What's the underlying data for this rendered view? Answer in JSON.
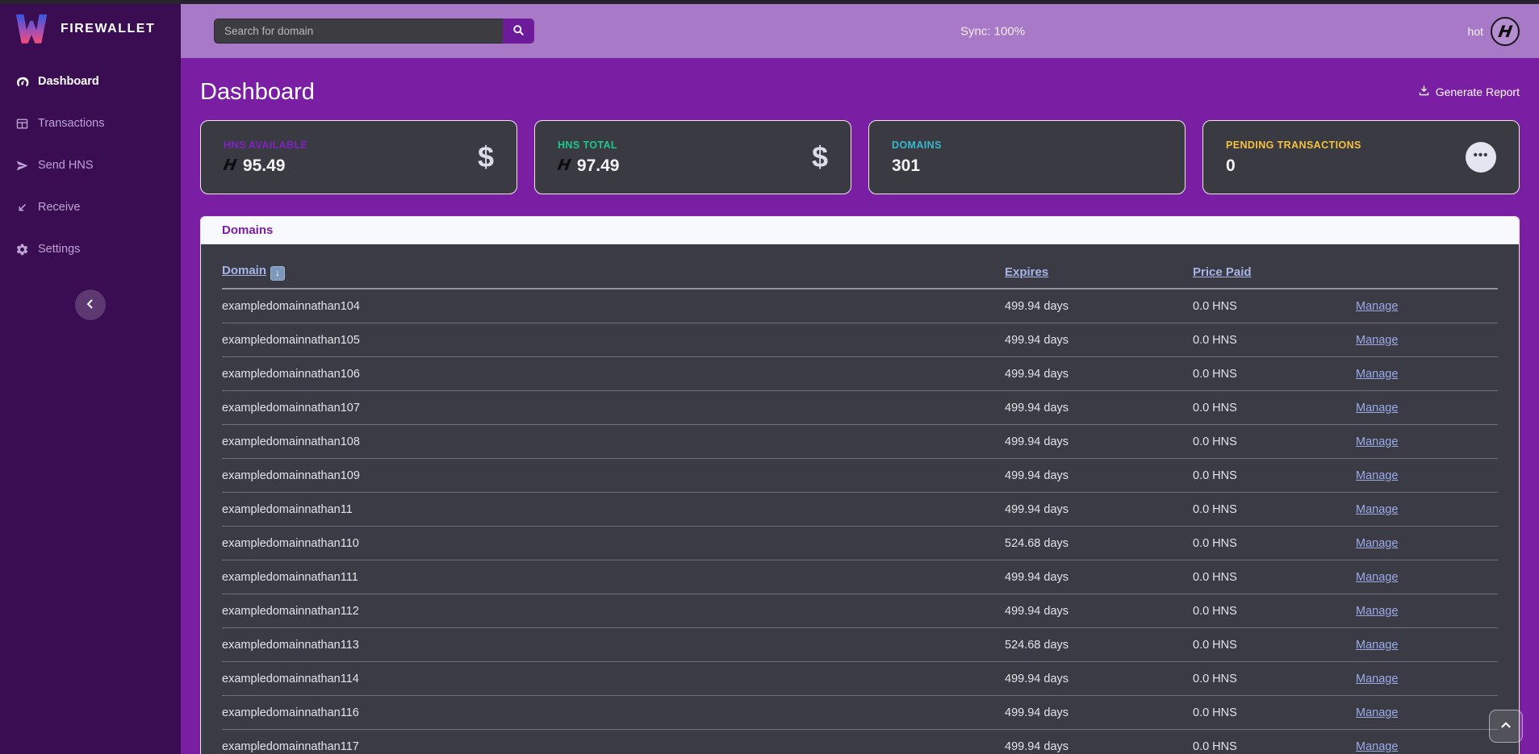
{
  "brand": {
    "name": "FIREWALLET",
    "logo_icon": "firewallet-w-logo"
  },
  "topbar": {
    "search": {
      "placeholder": "Search for domain",
      "button_icon": "search-icon"
    },
    "sync_status": "Sync: 100%",
    "wallet": {
      "label": "hot",
      "logo_icon": "handshake-logo"
    }
  },
  "sidebar": {
    "items": [
      {
        "label": "Dashboard",
        "icon": "tachometer-icon",
        "active": true
      },
      {
        "label": "Transactions",
        "icon": "table-icon",
        "active": false
      },
      {
        "label": "Send HNS",
        "icon": "send-icon",
        "active": false
      },
      {
        "label": "Receive",
        "icon": "receive-arrow-icon",
        "active": false
      },
      {
        "label": "Settings",
        "icon": "gear-icon",
        "active": false
      }
    ],
    "collapse_icon": "chevron-left-icon"
  },
  "page": {
    "title": "Dashboard",
    "actions": {
      "generate_report": {
        "label": "Generate Report",
        "icon": "download-icon"
      }
    }
  },
  "stat_cards": [
    {
      "label": "HNS AVAILABLE",
      "accent": "#7e22c0",
      "value": "95.49",
      "value_prefix_icon": "handshake-logo",
      "right_icon": "dollar-icon"
    },
    {
      "label": "HNS TOTAL",
      "accent": "#1cc88a",
      "value": "97.49",
      "value_prefix_icon": "handshake-logo",
      "right_icon": "dollar-icon"
    },
    {
      "label": "DOMAINS",
      "accent": "#36b9cc",
      "value": "301",
      "value_prefix_icon": null,
      "right_icon": null
    },
    {
      "label": "PENDING TRANSACTIONS",
      "accent": "#f6c23e",
      "value": "0",
      "value_prefix_icon": null,
      "right_icon": "ellipsis-menu-icon"
    }
  ],
  "domains_panel": {
    "title": "Domains",
    "table": {
      "columns": [
        {
          "label": "Domain",
          "sort_icon": "down-arrow-emoji"
        },
        {
          "label": "Expires"
        },
        {
          "label": "Price Paid"
        }
      ],
      "manage_label": "Manage",
      "rows": [
        {
          "domain": "exampledomainnathan104",
          "expires": "499.94 days",
          "price_paid": "0.0 HNS"
        },
        {
          "domain": "exampledomainnathan105",
          "expires": "499.94 days",
          "price_paid": "0.0 HNS"
        },
        {
          "domain": "exampledomainnathan106",
          "expires": "499.94 days",
          "price_paid": "0.0 HNS"
        },
        {
          "domain": "exampledomainnathan107",
          "expires": "499.94 days",
          "price_paid": "0.0 HNS"
        },
        {
          "domain": "exampledomainnathan108",
          "expires": "499.94 days",
          "price_paid": "0.0 HNS"
        },
        {
          "domain": "exampledomainnathan109",
          "expires": "499.94 days",
          "price_paid": "0.0 HNS"
        },
        {
          "domain": "exampledomainnathan11",
          "expires": "499.94 days",
          "price_paid": "0.0 HNS"
        },
        {
          "domain": "exampledomainnathan110",
          "expires": "524.68 days",
          "price_paid": "0.0 HNS"
        },
        {
          "domain": "exampledomainnathan111",
          "expires": "499.94 days",
          "price_paid": "0.0 HNS"
        },
        {
          "domain": "exampledomainnathan112",
          "expires": "499.94 days",
          "price_paid": "0.0 HNS"
        },
        {
          "domain": "exampledomainnathan113",
          "expires": "524.68 days",
          "price_paid": "0.0 HNS"
        },
        {
          "domain": "exampledomainnathan114",
          "expires": "499.94 days",
          "price_paid": "0.0 HNS"
        },
        {
          "domain": "exampledomainnathan116",
          "expires": "499.94 days",
          "price_paid": "0.0 HNS"
        },
        {
          "domain": "exampledomainnathan117",
          "expires": "499.94 days",
          "price_paid": "0.0 HNS"
        }
      ]
    }
  },
  "misc": {
    "scroll_top_icon": "chevron-up-icon"
  },
  "colors": {
    "top_strip": "#26232e",
    "sidebar_bg": "#3a0d52",
    "header_bg": "#a779c6",
    "main_bg": "#7a1ea3",
    "card_bg": "#3a3a42",
    "panel_header_bg": "#f8f9fc",
    "panel_title": "#7a1ea3",
    "table_link": "#a8b4e6",
    "search_button": "#6d1b9a",
    "accent_primary": "#7e22c0",
    "accent_success": "#1cc88a",
    "accent_info": "#36b9cc",
    "accent_warning": "#f6c23e"
  }
}
